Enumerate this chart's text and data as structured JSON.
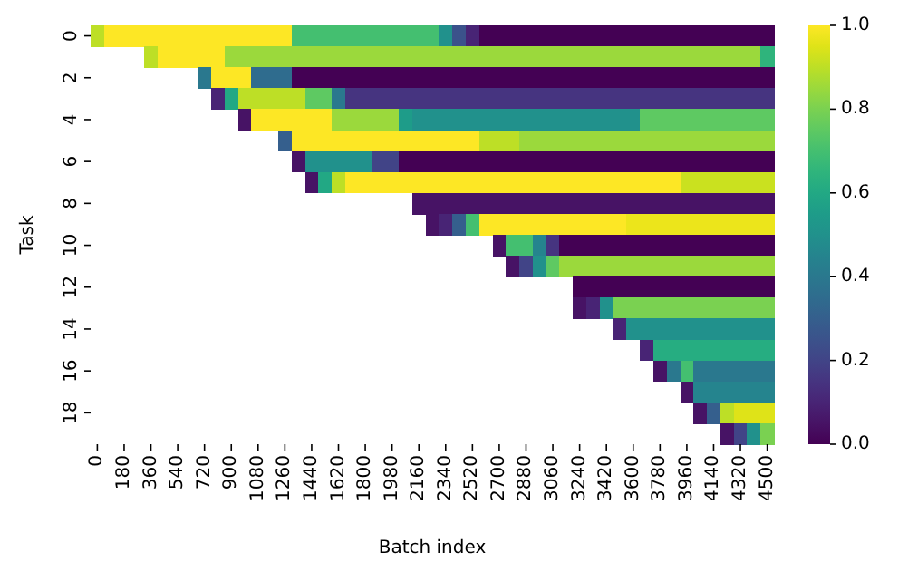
{
  "chart_data": {
    "type": "heatmap",
    "xlabel": "Batch index",
    "ylabel": "Task",
    "categories": [
      "0",
      null,
      "180",
      null,
      "360",
      null,
      "540",
      null,
      "720",
      null,
      "900",
      null,
      "1080",
      null,
      "1260",
      null,
      "1440",
      null,
      "1620",
      null,
      "1800",
      null,
      "1980",
      null,
      "2160",
      null,
      "2340",
      null,
      "2520",
      null,
      "2700",
      null,
      "2880",
      null,
      "3060",
      null,
      "3240",
      null,
      "3420",
      null,
      "3600",
      null,
      "3780",
      null,
      "3960",
      null,
      "4140",
      null,
      "4320",
      null,
      "4500"
    ],
    "y_categories": [
      "0",
      null,
      "2",
      null,
      "4",
      null,
      "6",
      null,
      "8",
      null,
      "10",
      null,
      "12",
      null,
      "14",
      null,
      "16",
      null,
      "18",
      null
    ],
    "clim": [
      0,
      1
    ],
    "cticks": [
      {
        "value": 0,
        "label": "0.0"
      },
      {
        "value": 0.2,
        "label": "0.2"
      },
      {
        "value": 0.4,
        "label": "0.4"
      },
      {
        "value": 0.6,
        "label": "0.6"
      },
      {
        "value": 0.8,
        "label": "0.8"
      },
      {
        "value": 1,
        "label": "1.0"
      }
    ],
    "cells": [
      [
        0.9,
        1.0,
        1.0,
        1.0,
        1.0,
        1.0,
        1.0,
        1.0,
        1.0,
        1.0,
        1.0,
        1.0,
        1.0,
        1.0,
        1.0,
        0.7,
        0.7,
        0.7,
        0.7,
        0.7,
        0.7,
        0.7,
        0.7,
        0.7,
        0.7,
        0.7,
        0.5,
        0.25,
        0.1,
        0.0,
        0.0,
        0.0,
        0.0,
        0.0,
        0.0,
        0.0,
        0.0,
        0.0,
        0.0,
        0.0,
        0.0,
        0.0,
        0.0,
        0.0,
        0.0,
        0.0,
        0.0,
        0.0,
        0.0,
        0.0,
        0.0
      ],
      [
        null,
        null,
        null,
        null,
        0.9,
        1.0,
        1.0,
        1.0,
        1.0,
        1.0,
        0.85,
        0.85,
        0.85,
        0.85,
        0.85,
        0.85,
        0.85,
        0.85,
        0.85,
        0.85,
        0.85,
        0.85,
        0.85,
        0.85,
        0.85,
        0.85,
        0.85,
        0.85,
        0.85,
        0.85,
        0.85,
        0.85,
        0.85,
        0.85,
        0.85,
        0.85,
        0.85,
        0.85,
        0.85,
        0.85,
        0.85,
        0.85,
        0.85,
        0.85,
        0.85,
        0.85,
        0.85,
        0.85,
        0.85,
        0.85,
        0.65
      ],
      [
        null,
        null,
        null,
        null,
        null,
        null,
        null,
        null,
        0.4,
        1.0,
        1.0,
        1.0,
        0.35,
        0.35,
        0.35,
        0.0,
        0.0,
        0.0,
        0.0,
        0.0,
        0.0,
        0.0,
        0.0,
        0.0,
        0.0,
        0.0,
        0.0,
        0.0,
        0.0,
        0.0,
        0.0,
        0.0,
        0.0,
        0.0,
        0.0,
        0.0,
        0.0,
        0.0,
        0.0,
        0.0,
        0.0,
        0.0,
        0.0,
        0.0,
        0.0,
        0.0,
        0.0,
        0.0,
        0.0,
        0.0,
        0.0
      ],
      [
        null,
        null,
        null,
        null,
        null,
        null,
        null,
        null,
        null,
        0.1,
        0.6,
        0.9,
        0.9,
        0.9,
        0.9,
        0.9,
        0.75,
        0.75,
        0.4,
        0.15,
        0.15,
        0.15,
        0.15,
        0.15,
        0.15,
        0.15,
        0.15,
        0.15,
        0.15,
        0.15,
        0.15,
        0.15,
        0.15,
        0.15,
        0.15,
        0.15,
        0.15,
        0.15,
        0.15,
        0.15,
        0.15,
        0.15,
        0.15,
        0.15,
        0.15,
        0.15,
        0.15,
        0.15,
        0.15,
        0.15,
        0.15
      ],
      [
        null,
        null,
        null,
        null,
        null,
        null,
        null,
        null,
        null,
        null,
        null,
        0.05,
        1.0,
        1.0,
        1.0,
        1.0,
        1.0,
        1.0,
        0.85,
        0.85,
        0.85,
        0.85,
        0.85,
        0.55,
        0.5,
        0.5,
        0.5,
        0.5,
        0.5,
        0.5,
        0.5,
        0.5,
        0.5,
        0.5,
        0.5,
        0.5,
        0.5,
        0.5,
        0.5,
        0.5,
        0.5,
        0.75,
        0.75,
        0.75,
        0.75,
        0.75,
        0.75,
        0.75,
        0.75,
        0.75,
        0.75
      ],
      [
        null,
        null,
        null,
        null,
        null,
        null,
        null,
        null,
        null,
        null,
        null,
        null,
        null,
        null,
        0.3,
        1.0,
        1.0,
        1.0,
        1.0,
        1.0,
        1.0,
        1.0,
        1.0,
        1.0,
        1.0,
        1.0,
        1.0,
        1.0,
        1.0,
        0.9,
        0.9,
        0.9,
        0.85,
        0.85,
        0.85,
        0.85,
        0.85,
        0.85,
        0.85,
        0.85,
        0.85,
        0.85,
        0.85,
        0.85,
        0.85,
        0.85,
        0.85,
        0.85,
        0.85,
        0.85,
        0.85
      ],
      [
        null,
        null,
        null,
        null,
        null,
        null,
        null,
        null,
        null,
        null,
        null,
        null,
        null,
        null,
        null,
        0.05,
        0.5,
        0.5,
        0.5,
        0.5,
        0.5,
        0.2,
        0.2,
        0.0,
        0.0,
        0.0,
        0.0,
        0.0,
        0.0,
        0.0,
        0.0,
        0.0,
        0.0,
        0.0,
        0.0,
        0.0,
        0.0,
        0.0,
        0.0,
        0.0,
        0.0,
        0.0,
        0.0,
        0.0,
        0.0,
        0.0,
        0.0,
        0.0,
        0.0,
        0.0,
        0.0
      ],
      [
        null,
        null,
        null,
        null,
        null,
        null,
        null,
        null,
        null,
        null,
        null,
        null,
        null,
        null,
        null,
        null,
        0.05,
        0.6,
        0.9,
        1.0,
        1.0,
        1.0,
        1.0,
        1.0,
        1.0,
        1.0,
        1.0,
        1.0,
        1.0,
        1.0,
        1.0,
        1.0,
        1.0,
        1.0,
        1.0,
        1.0,
        1.0,
        1.0,
        1.0,
        1.0,
        1.0,
        1.0,
        1.0,
        1.0,
        0.92,
        0.92,
        0.92,
        0.92,
        0.92,
        0.92,
        0.92
      ],
      [
        null,
        null,
        null,
        null,
        null,
        null,
        null,
        null,
        null,
        null,
        null,
        null,
        null,
        null,
        null,
        null,
        null,
        null,
        null,
        null,
        null,
        null,
        null,
        null,
        0.05,
        0.05,
        0.05,
        0.05,
        0.05,
        0.05,
        0.05,
        0.05,
        0.05,
        0.05,
        0.05,
        0.05,
        0.05,
        0.05,
        0.05,
        0.05,
        0.05,
        0.05,
        0.05,
        0.05,
        0.05,
        0.05,
        0.05,
        0.05,
        0.05,
        0.05,
        0.05
      ],
      [
        null,
        null,
        null,
        null,
        null,
        null,
        null,
        null,
        null,
        null,
        null,
        null,
        null,
        null,
        null,
        null,
        null,
        null,
        null,
        null,
        null,
        null,
        null,
        null,
        null,
        0.05,
        0.1,
        0.3,
        0.7,
        1.0,
        1.0,
        1.0,
        1.0,
        1.0,
        1.0,
        1.0,
        1.0,
        1.0,
        1.0,
        1.0,
        0.97,
        0.97,
        0.97,
        0.97,
        0.97,
        0.97,
        0.97,
        0.97,
        0.97,
        0.97,
        0.97
      ],
      [
        null,
        null,
        null,
        null,
        null,
        null,
        null,
        null,
        null,
        null,
        null,
        null,
        null,
        null,
        null,
        null,
        null,
        null,
        null,
        null,
        null,
        null,
        null,
        null,
        null,
        null,
        null,
        null,
        null,
        null,
        0.05,
        0.7,
        0.7,
        0.45,
        0.15,
        0.0,
        0.0,
        0.0,
        0.0,
        0.0,
        0.0,
        0.0,
        0.0,
        0.0,
        0.0,
        0.0,
        0.0,
        0.0,
        0.0,
        0.0,
        0.0
      ],
      [
        null,
        null,
        null,
        null,
        null,
        null,
        null,
        null,
        null,
        null,
        null,
        null,
        null,
        null,
        null,
        null,
        null,
        null,
        null,
        null,
        null,
        null,
        null,
        null,
        null,
        null,
        null,
        null,
        null,
        null,
        null,
        0.05,
        0.2,
        0.5,
        0.75,
        0.85,
        0.85,
        0.85,
        0.85,
        0.85,
        0.85,
        0.85,
        0.85,
        0.85,
        0.85,
        0.85,
        0.85,
        0.85,
        0.85,
        0.85,
        0.85
      ],
      [
        null,
        null,
        null,
        null,
        null,
        null,
        null,
        null,
        null,
        null,
        null,
        null,
        null,
        null,
        null,
        null,
        null,
        null,
        null,
        null,
        null,
        null,
        null,
        null,
        null,
        null,
        null,
        null,
        null,
        null,
        null,
        null,
        null,
        null,
        null,
        null,
        0.0,
        0.0,
        0.0,
        0.0,
        0.0,
        0.0,
        0.0,
        0.0,
        0.0,
        0.0,
        0.0,
        0.0,
        0.0,
        0.0,
        0.0
      ],
      [
        null,
        null,
        null,
        null,
        null,
        null,
        null,
        null,
        null,
        null,
        null,
        null,
        null,
        null,
        null,
        null,
        null,
        null,
        null,
        null,
        null,
        null,
        null,
        null,
        null,
        null,
        null,
        null,
        null,
        null,
        null,
        null,
        null,
        null,
        null,
        null,
        0.05,
        0.1,
        0.5,
        0.8,
        0.8,
        0.8,
        0.8,
        0.8,
        0.8,
        0.8,
        0.8,
        0.8,
        0.8,
        0.8,
        0.8
      ],
      [
        null,
        null,
        null,
        null,
        null,
        null,
        null,
        null,
        null,
        null,
        null,
        null,
        null,
        null,
        null,
        null,
        null,
        null,
        null,
        null,
        null,
        null,
        null,
        null,
        null,
        null,
        null,
        null,
        null,
        null,
        null,
        null,
        null,
        null,
        null,
        null,
        null,
        null,
        null,
        0.1,
        0.5,
        0.5,
        0.5,
        0.5,
        0.5,
        0.5,
        0.5,
        0.5,
        0.5,
        0.5,
        0.5
      ],
      [
        null,
        null,
        null,
        null,
        null,
        null,
        null,
        null,
        null,
        null,
        null,
        null,
        null,
        null,
        null,
        null,
        null,
        null,
        null,
        null,
        null,
        null,
        null,
        null,
        null,
        null,
        null,
        null,
        null,
        null,
        null,
        null,
        null,
        null,
        null,
        null,
        null,
        null,
        null,
        null,
        null,
        0.1,
        0.62,
        0.62,
        0.62,
        0.62,
        0.62,
        0.62,
        0.62,
        0.62,
        0.62
      ],
      [
        null,
        null,
        null,
        null,
        null,
        null,
        null,
        null,
        null,
        null,
        null,
        null,
        null,
        null,
        null,
        null,
        null,
        null,
        null,
        null,
        null,
        null,
        null,
        null,
        null,
        null,
        null,
        null,
        null,
        null,
        null,
        null,
        null,
        null,
        null,
        null,
        null,
        null,
        null,
        null,
        null,
        null,
        0.05,
        0.4,
        0.7,
        0.4,
        0.4,
        0.4,
        0.4,
        0.4,
        0.4
      ],
      [
        null,
        null,
        null,
        null,
        null,
        null,
        null,
        null,
        null,
        null,
        null,
        null,
        null,
        null,
        null,
        null,
        null,
        null,
        null,
        null,
        null,
        null,
        null,
        null,
        null,
        null,
        null,
        null,
        null,
        null,
        null,
        null,
        null,
        null,
        null,
        null,
        null,
        null,
        null,
        null,
        null,
        null,
        null,
        null,
        0.05,
        0.45,
        0.45,
        0.45,
        0.45,
        0.45,
        0.45
      ],
      [
        null,
        null,
        null,
        null,
        null,
        null,
        null,
        null,
        null,
        null,
        null,
        null,
        null,
        null,
        null,
        null,
        null,
        null,
        null,
        null,
        null,
        null,
        null,
        null,
        null,
        null,
        null,
        null,
        null,
        null,
        null,
        null,
        null,
        null,
        null,
        null,
        null,
        null,
        null,
        null,
        null,
        null,
        null,
        null,
        null,
        0.05,
        0.3,
        0.9,
        0.95,
        0.95,
        0.95
      ],
      [
        null,
        null,
        null,
        null,
        null,
        null,
        null,
        null,
        null,
        null,
        null,
        null,
        null,
        null,
        null,
        null,
        null,
        null,
        null,
        null,
        null,
        null,
        null,
        null,
        null,
        null,
        null,
        null,
        null,
        null,
        null,
        null,
        null,
        null,
        null,
        null,
        null,
        null,
        null,
        null,
        null,
        null,
        null,
        null,
        null,
        null,
        null,
        0.05,
        0.2,
        0.5,
        0.8
      ]
    ]
  }
}
